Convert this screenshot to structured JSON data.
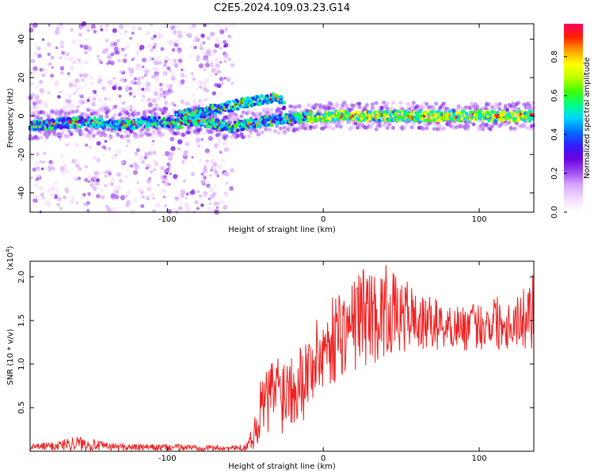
{
  "figure": {
    "title": "C2E5.2024.109.03.23.G14"
  },
  "chart_data": [
    {
      "type": "heatmap",
      "title": "C2E5.2024.109.03.23.G14",
      "xlabel": "Height of straight line (km)",
      "ylabel": "Frequency (Hz)",
      "xlim": [
        -188,
        135
      ],
      "ylim": [
        -50,
        48
      ],
      "x_ticks": [
        -100,
        0,
        100
      ],
      "y_ticks": [
        -40,
        -20,
        0,
        20,
        40
      ],
      "colorbar": {
        "label": "Normalized spectral amplitude",
        "range": [
          0,
          0.97
        ],
        "ticks": [
          0.0,
          0.2,
          0.4,
          0.6,
          0.8
        ],
        "colormap": [
          "#ffffff",
          "#f6dcff",
          "#d8a8ff",
          "#9a4af0",
          "#6a00e0",
          "#3020ff",
          "#0070ff",
          "#00d8ff",
          "#00ff80",
          "#40ff00",
          "#c0ff00",
          "#ffff00",
          "#ffa000",
          "#ff2000",
          "#ff0060"
        ]
      },
      "ridge": {
        "description_points_x": [
          -185,
          -170,
          -150,
          -130,
          -110,
          -95,
          -80,
          -60,
          -45,
          -30,
          -20,
          0,
          30,
          60,
          90,
          120,
          134
        ],
        "center_freq_lower": [
          -5,
          -4,
          -3,
          -5,
          -3,
          -4,
          -2,
          -6,
          -4,
          -2,
          -1,
          0,
          0,
          0,
          0,
          0,
          0
        ],
        "center_freq_upper": [
          -5,
          -4,
          -3,
          -5,
          -3,
          0,
          2,
          5,
          8,
          10,
          2,
          1,
          1,
          0,
          0,
          0,
          0
        ]
      }
    },
    {
      "type": "line",
      "title": "",
      "xlabel": "Height of straight line (km)",
      "ylabel": "SNR (10 * v/v)",
      "yscale_label": "(x10",
      "yscale_exp": "4",
      "yscale_close": ")",
      "xlim": [
        -188,
        135
      ],
      "ylim": [
        0,
        2.18
      ],
      "x_ticks": [
        -100,
        0,
        100
      ],
      "y_ticks": [
        0.5,
        1.0,
        1.5,
        2.0
      ],
      "series": [
        {
          "color": "#ee2222",
          "x": [
            -188,
            -170,
            -160,
            -150,
            -140,
            -120,
            -100,
            -80,
            -60,
            -50,
            -45,
            -42,
            -40,
            -35,
            -30,
            -25,
            -20,
            -15,
            -10,
            -5,
            0,
            5,
            10,
            15,
            20,
            25,
            30,
            35,
            40,
            45,
            50,
            55,
            60,
            65,
            70,
            75,
            80,
            85,
            90,
            95,
            100,
            105,
            110,
            115,
            120,
            125,
            130,
            134
          ],
          "y_envelope_low": [
            0.0,
            0.0,
            0.0,
            0.0,
            0.0,
            0.0,
            0.0,
            0.0,
            0.0,
            0.0,
            0.02,
            0.05,
            0.08,
            0.1,
            0.15,
            0.2,
            0.25,
            0.3,
            0.4,
            0.5,
            0.6,
            0.7,
            0.8,
            0.85,
            0.9,
            0.95,
            1.0,
            1.0,
            1.05,
            1.05,
            1.1,
            1.1,
            1.1,
            1.1,
            1.15,
            1.15,
            1.15,
            1.15,
            1.15,
            1.1,
            1.15,
            1.15,
            1.15,
            1.15,
            1.15,
            1.15,
            1.15,
            1.15
          ],
          "y_envelope_high": [
            0.08,
            0.12,
            0.18,
            0.15,
            0.1,
            0.08,
            0.08,
            0.08,
            0.06,
            0.08,
            0.3,
            0.6,
            0.85,
            1.0,
            1.2,
            1.1,
            1.3,
            1.25,
            1.35,
            1.5,
            1.6,
            1.75,
            1.9,
            1.8,
            2.0,
            2.15,
            2.1,
            2.0,
            2.15,
            2.05,
            1.9,
            2.0,
            1.8,
            1.75,
            1.8,
            1.7,
            1.65,
            1.7,
            1.65,
            1.7,
            1.7,
            1.7,
            1.85,
            1.7,
            1.75,
            1.8,
            1.9,
            2.1
          ]
        }
      ]
    }
  ]
}
